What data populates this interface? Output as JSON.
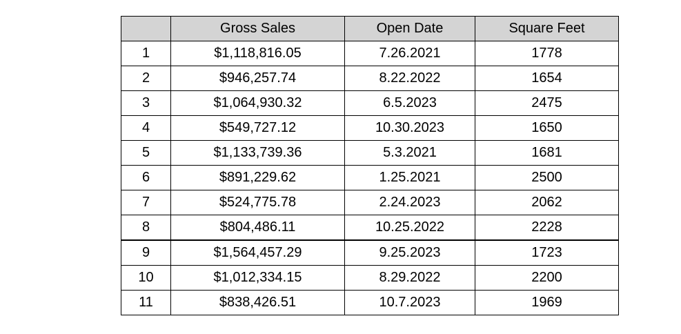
{
  "table": {
    "headers": [
      "",
      "Gross Sales",
      "Open Date",
      "Square Feet"
    ],
    "rows": [
      [
        "1",
        "$1,118,816.05",
        "7.26.2021",
        "1778"
      ],
      [
        "2",
        "$946,257.74",
        "8.22.2022",
        "1654"
      ],
      [
        "3",
        "$1,064,930.32",
        "6.5.2023",
        "2475"
      ],
      [
        "4",
        "$549,727.12",
        "10.30.2023",
        "1650"
      ],
      [
        "5",
        "$1,133,739.36",
        "5.3.2021",
        "1681"
      ],
      [
        "6",
        "$891,229.62",
        "1.25.2021",
        "2500"
      ],
      [
        "7",
        "$524,775.78",
        "2.24.2023",
        "2062"
      ],
      [
        "8",
        "$804,486.11",
        "10.25.2022",
        "2228"
      ],
      [
        "9",
        "$1,564,457.29",
        "9.25.2023",
        "1723"
      ],
      [
        "10",
        "$1,012,334.15",
        "8.29.2022",
        "2200"
      ],
      [
        "11",
        "$838,426.51",
        "10.7.2023",
        "1969"
      ]
    ]
  },
  "colors": {
    "header_background": "#d4d4d4",
    "border": "#000000"
  }
}
